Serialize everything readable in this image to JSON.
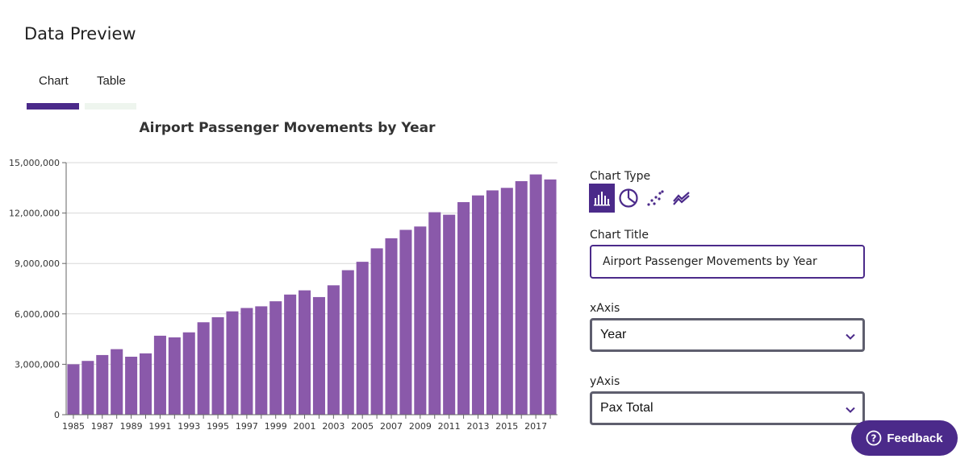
{
  "page": {
    "title": "Data Preview"
  },
  "tabs": [
    {
      "label": "Chart",
      "active": true
    },
    {
      "label": "Table",
      "active": false
    }
  ],
  "colors": {
    "accent": "#4b2a8a",
    "bar": "#8a59aa",
    "tab_inactive": "#eef5ee",
    "grid": "#d8d8d8"
  },
  "chart_data": {
    "type": "bar",
    "title": "Airport Passenger Movements by Year",
    "xlabel": "",
    "ylabel": "",
    "grid": true,
    "ylim": [
      0,
      15000000
    ],
    "yticks": [
      "0",
      "3,000,000",
      "6,000,000",
      "9,000,000",
      "12,000,000",
      "15,000,000"
    ],
    "ytick_values": [
      0,
      3000000,
      6000000,
      9000000,
      12000000,
      15000000
    ],
    "xtick_labels": [
      "1985",
      "1987",
      "1989",
      "1991",
      "1993",
      "1995",
      "1997",
      "1999",
      "2001",
      "2003",
      "2005",
      "2007",
      "2009",
      "2011",
      "2013",
      "2015",
      "2017"
    ],
    "categories": [
      "1985",
      "1986",
      "1987",
      "1988",
      "1989",
      "1990",
      "1991",
      "1992",
      "1993",
      "1994",
      "1995",
      "1996",
      "1997",
      "1998",
      "1999",
      "2000",
      "2001",
      "2002",
      "2003",
      "2004",
      "2005",
      "2006",
      "2007",
      "2008",
      "2009",
      "2010",
      "2011",
      "2012",
      "2013",
      "2014",
      "2015",
      "2016",
      "2017",
      "2018"
    ],
    "values": [
      3000000,
      3200000,
      3550000,
      3900000,
      3450000,
      3650000,
      4700000,
      4600000,
      4900000,
      5500000,
      5800000,
      6150000,
      6350000,
      6450000,
      6750000,
      7150000,
      7400000,
      7000000,
      7700000,
      8600000,
      9100000,
      9900000,
      10500000,
      11000000,
      11200000,
      12050000,
      11900000,
      12650000,
      13050000,
      13350000,
      13500000,
      13900000,
      14300000,
      14000000
    ]
  },
  "panel": {
    "chart_type_label": "Chart Type",
    "chart_types": [
      {
        "name": "bar",
        "icon": "bar-chart-icon",
        "selected": true
      },
      {
        "name": "pie",
        "icon": "pie-chart-icon",
        "selected": false
      },
      {
        "name": "scatter",
        "icon": "scatter-chart-icon",
        "selected": false
      },
      {
        "name": "line",
        "icon": "line-chart-icon",
        "selected": false
      }
    ],
    "chart_title_label": "Chart Title",
    "chart_title_value": "Airport Passenger Movements by Year",
    "xaxis_label": "xAxis",
    "xaxis_value": "Year",
    "yaxis_label": "yAxis",
    "yaxis_value": "Pax Total"
  },
  "feedback": {
    "label": "Feedback",
    "icon": "help-circle-icon"
  }
}
